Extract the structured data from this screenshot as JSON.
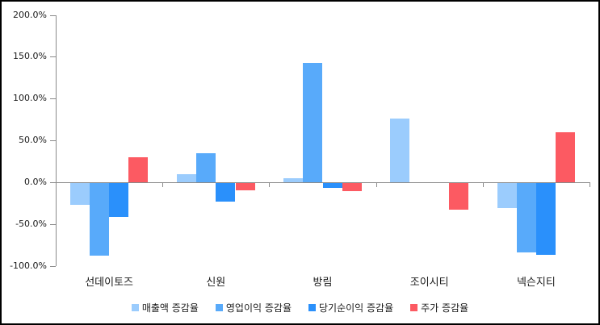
{
  "chart_data": {
    "type": "bar",
    "title": "",
    "categories": [
      "선데이토즈",
      "신원",
      "방림",
      "조이시티",
      "넥슨지티"
    ],
    "series": [
      {
        "name": "매출액 증감율",
        "color": "#9bccfd",
        "values": [
          -27,
          10,
          5,
          76,
          -31
        ]
      },
      {
        "name": "영업이익 증감율",
        "color": "#58aafa",
        "values": [
          -88,
          35,
          143,
          0,
          -84
        ]
      },
      {
        "name": "당기순이익 증감율",
        "color": "#2a90fb",
        "values": [
          -41,
          -23,
          -7,
          0,
          -87
        ]
      },
      {
        "name": "주가 증감율",
        "color": "#fc5a62",
        "values": [
          30,
          -10,
          -11,
          -33,
          60
        ]
      }
    ],
    "y_axis": {
      "unit": "%",
      "min": -100,
      "max": 200,
      "ticks": [
        {
          "value": 200,
          "label": "200.0%"
        },
        {
          "value": 150,
          "label": "150.0%"
        },
        {
          "value": 100,
          "label": "100.0%"
        },
        {
          "value": 50,
          "label": "50.0%"
        },
        {
          "value": 0,
          "label": "0.0%"
        },
        {
          "value": -50,
          "label": "-50.0%"
        },
        {
          "value": -100,
          "label": "-100.0%"
        }
      ]
    },
    "grid": false,
    "legend_position": "bottom",
    "axis_color": "#8a8a8a",
    "background_color": "#ffffff"
  }
}
